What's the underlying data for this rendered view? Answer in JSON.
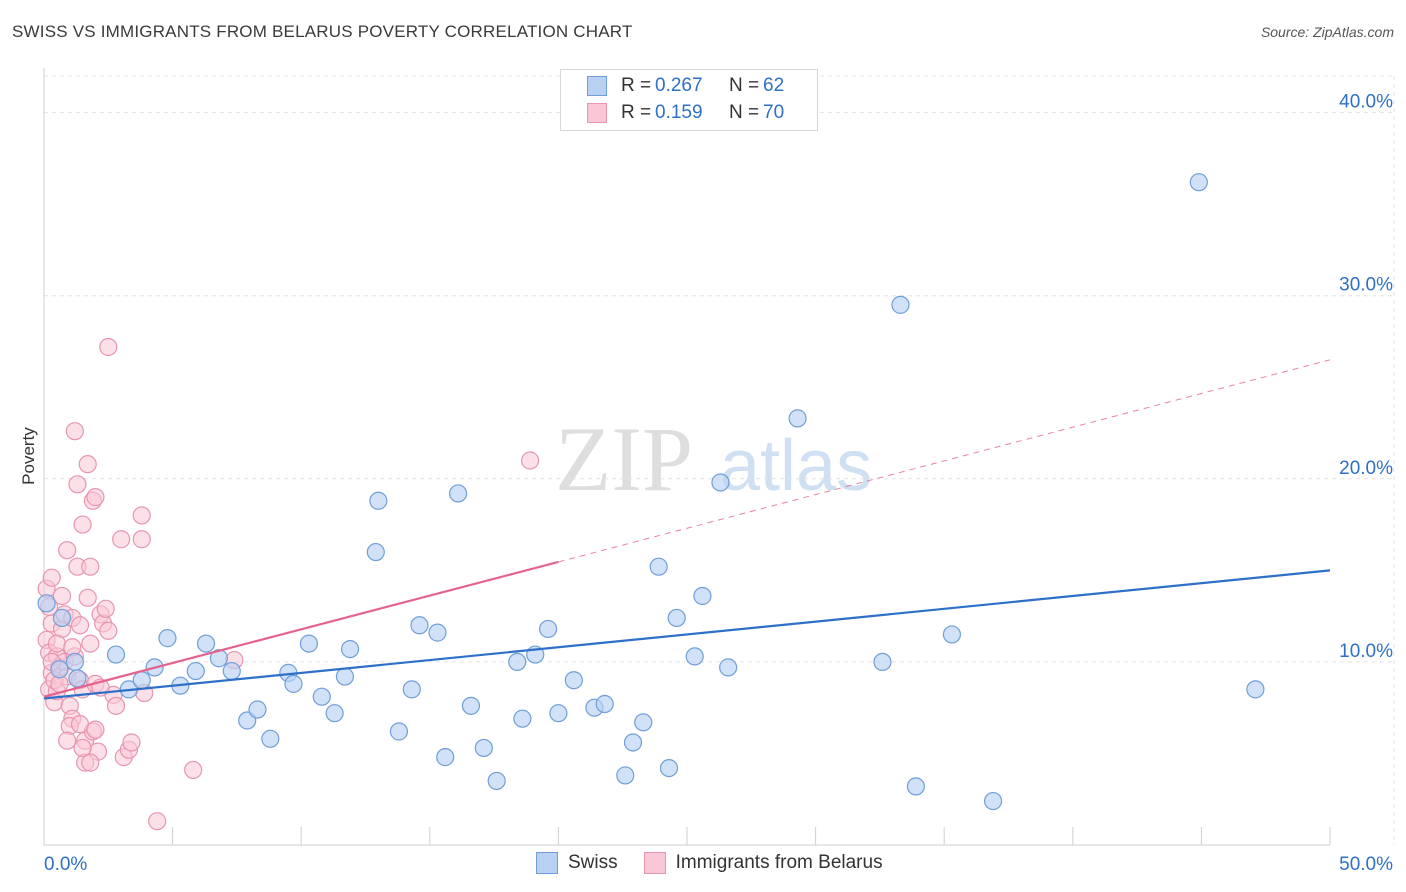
{
  "title": "SWISS VS IMMIGRANTS FROM BELARUS POVERTY CORRELATION CHART",
  "source": "Source: ZipAtlas.com",
  "watermark": {
    "zip": "ZIP",
    "atlas": "atlas"
  },
  "legend": {
    "swiss": {
      "r_label": "R =",
      "r_value": "0.267",
      "n_label": "N =",
      "n_value": "62"
    },
    "belarus": {
      "r_label": "R =",
      "r_value": "0.159",
      "n_label": "N =",
      "n_value": "70"
    }
  },
  "colors": {
    "swiss_fill": "#b8d1f3",
    "swiss_stroke": "#6f9fd8",
    "swiss_line": "#2d70c8",
    "belarus_fill": "#f9c6d5",
    "belarus_stroke": "#e895b0",
    "belarus_line": "#e4648f",
    "axis_text": "#2d70c8"
  },
  "chart_data": {
    "type": "scatter",
    "title": "SWISS VS IMMIGRANTS FROM BELARUS POVERTY CORRELATION CHART",
    "xlabel": "",
    "ylabel": "Poverty",
    "xlim": [
      0,
      50
    ],
    "ylim": [
      0,
      42
    ],
    "x_tick_labels": [
      "0.0%",
      "50.0%"
    ],
    "y_ticks": [
      10,
      20,
      30,
      40
    ],
    "y_tick_labels": [
      "10.0%",
      "20.0%",
      "30.0%",
      "40.0%"
    ],
    "series": [
      {
        "name": "Swiss",
        "trend": {
          "x0": 0,
          "y0": 8.0,
          "x1": 50,
          "y1": 15.0,
          "dashed_from": null
        },
        "points": [
          [
            0.1,
            13.2
          ],
          [
            0.7,
            12.4
          ],
          [
            0.6,
            9.6
          ],
          [
            1.2,
            10.0
          ],
          [
            1.3,
            9.1
          ],
          [
            2.8,
            10.4
          ],
          [
            3.3,
            8.5
          ],
          [
            3.8,
            9.0
          ],
          [
            4.3,
            9.7
          ],
          [
            4.8,
            11.3
          ],
          [
            5.3,
            8.7
          ],
          [
            5.9,
            9.5
          ],
          [
            6.3,
            11.0
          ],
          [
            6.8,
            10.2
          ],
          [
            7.3,
            9.5
          ],
          [
            7.9,
            6.8
          ],
          [
            8.3,
            7.4
          ],
          [
            8.8,
            5.8
          ],
          [
            9.5,
            9.4
          ],
          [
            9.7,
            8.8
          ],
          [
            10.3,
            11.0
          ],
          [
            10.8,
            8.1
          ],
          [
            11.3,
            7.2
          ],
          [
            11.7,
            9.2
          ],
          [
            11.9,
            10.7
          ],
          [
            12.9,
            16.0
          ],
          [
            13.0,
            18.8
          ],
          [
            13.8,
            6.2
          ],
          [
            14.3,
            8.5
          ],
          [
            14.6,
            12.0
          ],
          [
            15.3,
            11.6
          ],
          [
            15.6,
            4.8
          ],
          [
            16.1,
            19.2
          ],
          [
            16.6,
            7.6
          ],
          [
            17.1,
            5.3
          ],
          [
            17.6,
            3.5
          ],
          [
            18.4,
            10.0
          ],
          [
            18.6,
            6.9
          ],
          [
            19.1,
            10.4
          ],
          [
            19.6,
            11.8
          ],
          [
            20.0,
            7.2
          ],
          [
            20.6,
            9.0
          ],
          [
            21.4,
            7.5
          ],
          [
            21.8,
            7.7
          ],
          [
            22.6,
            3.8
          ],
          [
            22.9,
            5.6
          ],
          [
            23.3,
            6.7
          ],
          [
            23.9,
            15.2
          ],
          [
            24.3,
            4.2
          ],
          [
            24.6,
            12.4
          ],
          [
            25.3,
            10.3
          ],
          [
            25.6,
            13.6
          ],
          [
            26.3,
            19.8
          ],
          [
            26.6,
            9.7
          ],
          [
            29.3,
            23.3
          ],
          [
            32.6,
            10.0
          ],
          [
            33.3,
            29.5
          ],
          [
            33.9,
            3.2
          ],
          [
            35.3,
            11.5
          ],
          [
            36.9,
            2.4
          ],
          [
            44.9,
            36.2
          ],
          [
            47.1,
            8.5
          ]
        ]
      },
      {
        "name": "Immigrants from Belarus",
        "trend": {
          "x0": 0,
          "y0": 8.1,
          "x1": 50,
          "y1": 26.5,
          "dashed_from": 20.0
        },
        "points": [
          [
            0.1,
            14.0
          ],
          [
            0.1,
            11.2
          ],
          [
            0.2,
            10.5
          ],
          [
            0.2,
            8.5
          ],
          [
            0.3,
            14.6
          ],
          [
            0.3,
            12.1
          ],
          [
            0.3,
            9.4
          ],
          [
            0.4,
            7.8
          ],
          [
            0.5,
            10.3
          ],
          [
            0.5,
            8.4
          ],
          [
            0.6,
            9.7
          ],
          [
            0.7,
            13.6
          ],
          [
            0.7,
            11.8
          ],
          [
            0.8,
            12.6
          ],
          [
            0.8,
            10.0
          ],
          [
            0.9,
            16.1
          ],
          [
            0.9,
            9.2
          ],
          [
            1.0,
            7.6
          ],
          [
            1.1,
            12.4
          ],
          [
            1.1,
            6.9
          ],
          [
            1.2,
            22.6
          ],
          [
            1.2,
            10.3
          ],
          [
            1.3,
            19.7
          ],
          [
            1.3,
            15.2
          ],
          [
            1.4,
            12.0
          ],
          [
            1.4,
            9.0
          ],
          [
            1.5,
            17.5
          ],
          [
            1.5,
            8.5
          ],
          [
            1.6,
            5.7
          ],
          [
            1.6,
            4.5
          ],
          [
            1.7,
            20.8
          ],
          [
            1.7,
            13.5
          ],
          [
            1.8,
            15.2
          ],
          [
            1.8,
            11.0
          ],
          [
            1.9,
            18.8
          ],
          [
            1.9,
            6.2
          ],
          [
            2.0,
            19.0
          ],
          [
            2.0,
            8.8
          ],
          [
            2.1,
            5.1
          ],
          [
            2.2,
            12.6
          ],
          [
            2.3,
            12.1
          ],
          [
            2.4,
            12.9
          ],
          [
            2.5,
            11.7
          ],
          [
            2.5,
            27.2
          ],
          [
            2.7,
            8.2
          ],
          [
            2.8,
            7.6
          ],
          [
            3.0,
            16.7
          ],
          [
            3.1,
            4.8
          ],
          [
            3.3,
            5.2
          ],
          [
            3.4,
            5.6
          ],
          [
            3.8,
            16.7
          ],
          [
            3.8,
            18.0
          ],
          [
            3.9,
            8.3
          ],
          [
            4.4,
            1.3
          ],
          [
            5.8,
            4.1
          ],
          [
            7.4,
            10.1
          ],
          [
            18.9,
            21.0
          ],
          [
            0.4,
            9.0
          ],
          [
            0.5,
            11.0
          ],
          [
            1.0,
            6.5
          ],
          [
            1.4,
            6.6
          ],
          [
            1.1,
            10.8
          ],
          [
            0.2,
            13.0
          ],
          [
            0.3,
            10.0
          ],
          [
            1.8,
            4.5
          ],
          [
            2.0,
            6.3
          ],
          [
            0.9,
            5.7
          ],
          [
            1.5,
            5.3
          ],
          [
            0.6,
            8.8
          ],
          [
            2.2,
            8.6
          ]
        ]
      }
    ]
  },
  "bottom_legend": {
    "swiss": "Swiss",
    "belarus": "Immigrants from Belarus"
  }
}
